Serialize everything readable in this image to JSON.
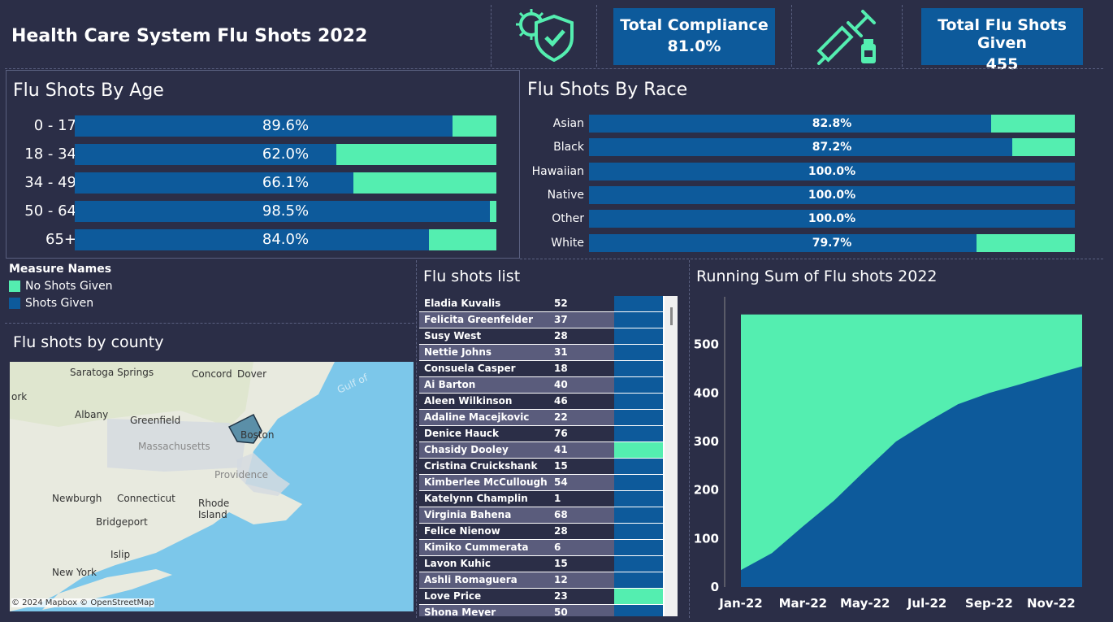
{
  "header": {
    "title": "Health Care System Flu Shots 2022",
    "compliance_label": "Total Compliance",
    "compliance_value": "81.0%",
    "shots_label": "Total Flu Shots Given",
    "shots_value": "455",
    "colors": {
      "shots_given": "#0d5a9b",
      "no_shots": "#54eeb0",
      "bg": "#2b2e47"
    }
  },
  "age": {
    "title": "Flu Shots By Age",
    "rows": [
      {
        "label": "0 - 17",
        "pct": 89.6,
        "text": "89.6%"
      },
      {
        "label": "18 - 34",
        "pct": 62.0,
        "text": "62.0%"
      },
      {
        "label": "34 - 49",
        "pct": 66.1,
        "text": "66.1%"
      },
      {
        "label": "50 - 64",
        "pct": 98.5,
        "text": "98.5%"
      },
      {
        "label": "65+",
        "pct": 84.0,
        "text": "84.0%"
      }
    ]
  },
  "race": {
    "title": "Flu Shots By Race",
    "rows": [
      {
        "label": "Asian",
        "pct": 82.8,
        "text": "82.8%"
      },
      {
        "label": "Black",
        "pct": 87.2,
        "text": "87.2%"
      },
      {
        "label": "Hawaiian",
        "pct": 100.0,
        "text": "100.0%"
      },
      {
        "label": "Native",
        "pct": 100.0,
        "text": "100.0%"
      },
      {
        "label": "Other",
        "pct": 100.0,
        "text": "100.0%"
      },
      {
        "label": "White",
        "pct": 79.7,
        "text": "79.7%"
      }
    ]
  },
  "legend": {
    "title": "Measure Names",
    "items": [
      {
        "label": "No Shots Given",
        "color": "#54eeb0"
      },
      {
        "label": "Shots Given",
        "color": "#0d5a9b"
      }
    ]
  },
  "county": {
    "title": "Flu shots by county",
    "attribution": "© 2024 Mapbox © OpenStreetMap",
    "places": [
      "Saratoga Springs",
      "Concord",
      "Dover",
      "ork",
      "Albany",
      "Greenfield",
      "Massachusetts",
      "Boston",
      "Providence",
      "Newburgh",
      "Connecticut",
      "Rhode Island",
      "Bridgeport",
      "Islip",
      "New York",
      "Gulf of"
    ]
  },
  "list": {
    "title": "Flu shots list",
    "rows": [
      {
        "name": "Eladia Kuvalis",
        "age": "52",
        "status": "given"
      },
      {
        "name": "Felicita Greenfelder",
        "age": "37",
        "status": "given"
      },
      {
        "name": "Susy West",
        "age": "28",
        "status": "given"
      },
      {
        "name": "Nettie Johns",
        "age": "31",
        "status": "given"
      },
      {
        "name": "Consuela Casper",
        "age": "18",
        "status": "given"
      },
      {
        "name": "Ai Barton",
        "age": "40",
        "status": "given"
      },
      {
        "name": "Aleen Wilkinson",
        "age": "46",
        "status": "given"
      },
      {
        "name": "Adaline Macejkovic",
        "age": "22",
        "status": "given"
      },
      {
        "name": "Denice Hauck",
        "age": "76",
        "status": "given"
      },
      {
        "name": "Chasidy Dooley",
        "age": "41",
        "status": "none"
      },
      {
        "name": "Cristina Cruickshank",
        "age": "15",
        "status": "given"
      },
      {
        "name": "Kimberlee McCullough",
        "age": "54",
        "status": "given"
      },
      {
        "name": "Katelynn Champlin",
        "age": "1",
        "status": "given"
      },
      {
        "name": "Virginia Bahena",
        "age": "68",
        "status": "given"
      },
      {
        "name": "Felice Nienow",
        "age": "28",
        "status": "given"
      },
      {
        "name": "Kimiko Cummerata",
        "age": "6",
        "status": "given"
      },
      {
        "name": "Lavon Kuhic",
        "age": "15",
        "status": "given"
      },
      {
        "name": "Ashli Romaguera",
        "age": "12",
        "status": "given"
      },
      {
        "name": "Love Price",
        "age": "23",
        "status": "none"
      },
      {
        "name": "Shona Meyer",
        "age": "50",
        "status": "given"
      }
    ]
  },
  "chart_data": {
    "type": "area",
    "title": "Running Sum of Flu shots 2022",
    "x": [
      "Jan-22",
      "Feb-22",
      "Mar-22",
      "Apr-22",
      "May-22",
      "Jun-22",
      "Jul-22",
      "Aug-22",
      "Sep-22",
      "Oct-22",
      "Nov-22",
      "Dec-22"
    ],
    "xtick_labels": [
      "Jan-22",
      "Mar-22",
      "May-22",
      "Jul-22",
      "Sep-22",
      "Nov-22"
    ],
    "series": [
      {
        "name": "Shots Given",
        "values": [
          35,
          70,
          125,
          178,
          240,
          300,
          340,
          377,
          400,
          418,
          437,
          455
        ],
        "color": "#0d5a9b"
      },
      {
        "name": "No Shots Given",
        "values": [
          562,
          562,
          562,
          562,
          562,
          562,
          562,
          562,
          562,
          562,
          562,
          562
        ],
        "color": "#54eeb0"
      }
    ],
    "yticks": [
      0,
      100,
      200,
      300,
      400,
      500
    ],
    "ylim": [
      0,
      590
    ]
  }
}
